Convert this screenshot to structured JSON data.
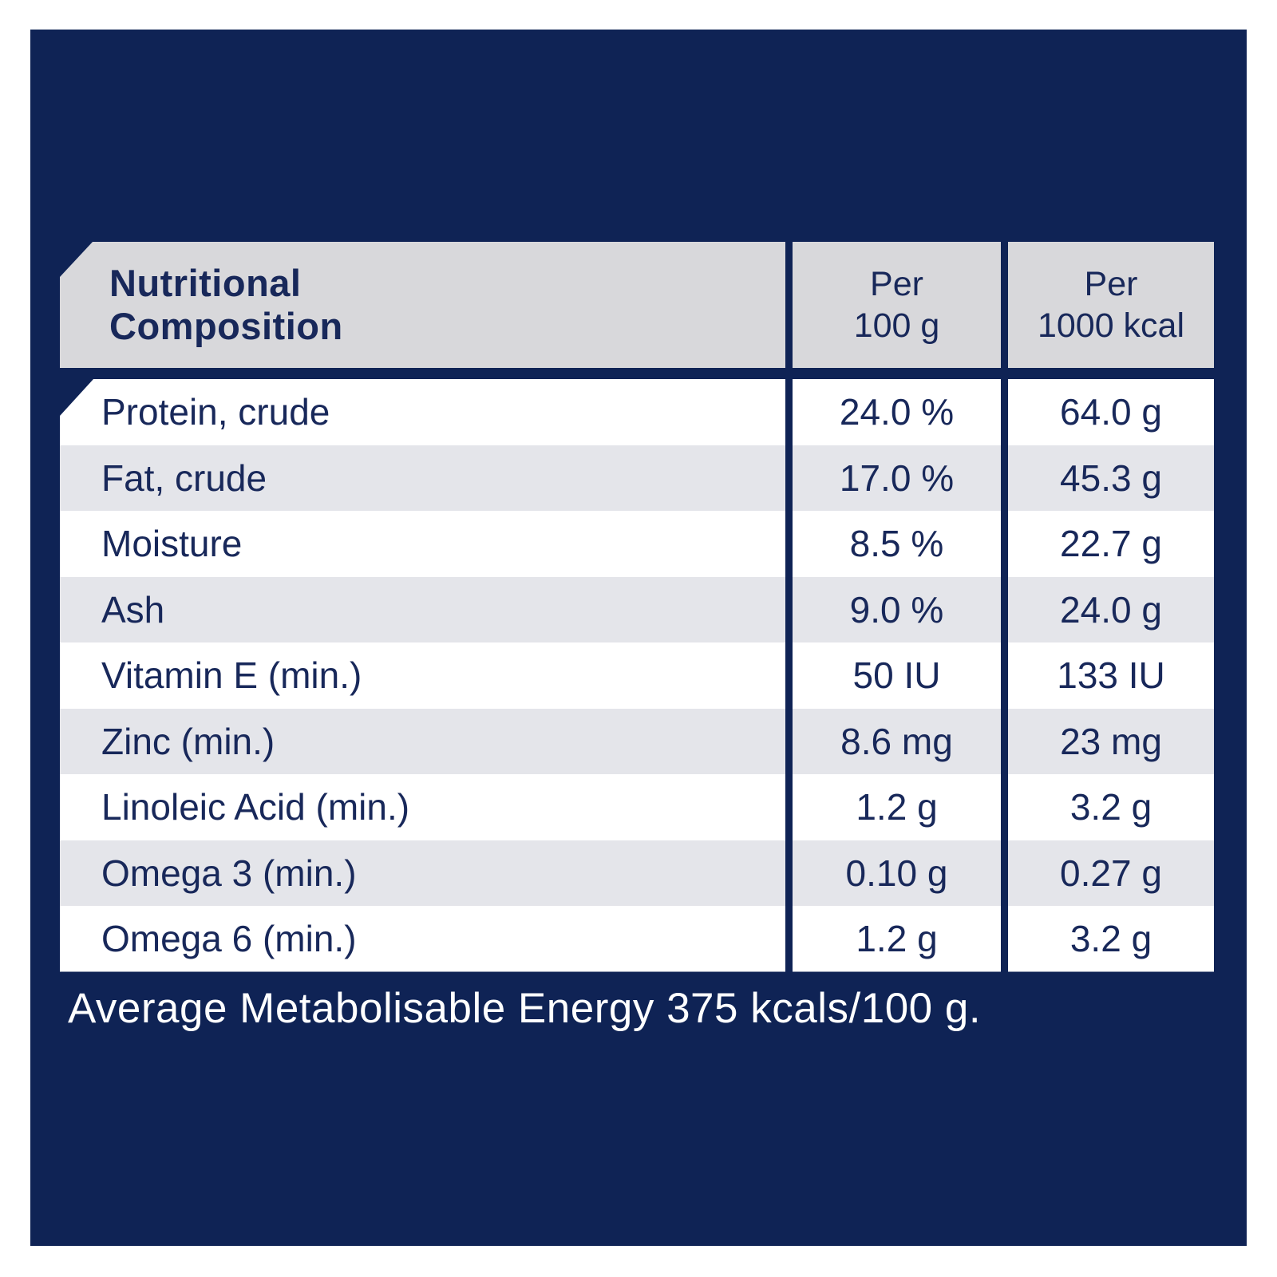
{
  "colors": {
    "background": "#ffffff",
    "panel_navy": "#0f2355",
    "header_gray": "#d8d8db",
    "row_alt_gray": "#e4e5ea",
    "row_white": "#ffffff",
    "text_navy": "#18285a",
    "footer_text": "#ffffff"
  },
  "table": {
    "header": {
      "title_line1": "Nutritional",
      "title_line2": "Composition",
      "col2_line1": "Per",
      "col2_line2": "100 g",
      "col3_line1": "Per",
      "col3_line2": "1000 kcal"
    },
    "rows": [
      {
        "label": "Protein, crude",
        "per_100g": "24.0 %",
        "per_1000kcal": "64.0 g"
      },
      {
        "label": "Fat, crude",
        "per_100g": "17.0 %",
        "per_1000kcal": "45.3 g"
      },
      {
        "label": "Moisture",
        "per_100g": "8.5 %",
        "per_1000kcal": "22.7 g"
      },
      {
        "label": "Ash",
        "per_100g": "9.0 %",
        "per_1000kcal": "24.0 g"
      },
      {
        "label": "Vitamin E (min.)",
        "per_100g": "50 IU",
        "per_1000kcal": "133 IU"
      },
      {
        "label": "Zinc (min.)",
        "per_100g": "8.6 mg",
        "per_1000kcal": "23 mg"
      },
      {
        "label": "Linoleic Acid (min.)",
        "per_100g": "1.2 g",
        "per_1000kcal": "3.2 g"
      },
      {
        "label": "Omega 3 (min.)",
        "per_100g": "0.10 g",
        "per_1000kcal": "0.27 g"
      },
      {
        "label": "Omega 6 (min.)",
        "per_100g": "1.2 g",
        "per_1000kcal": "3.2 g"
      }
    ]
  },
  "footer": {
    "energy_statement": "Average Metabolisable Energy 375 kcals/100 g."
  }
}
